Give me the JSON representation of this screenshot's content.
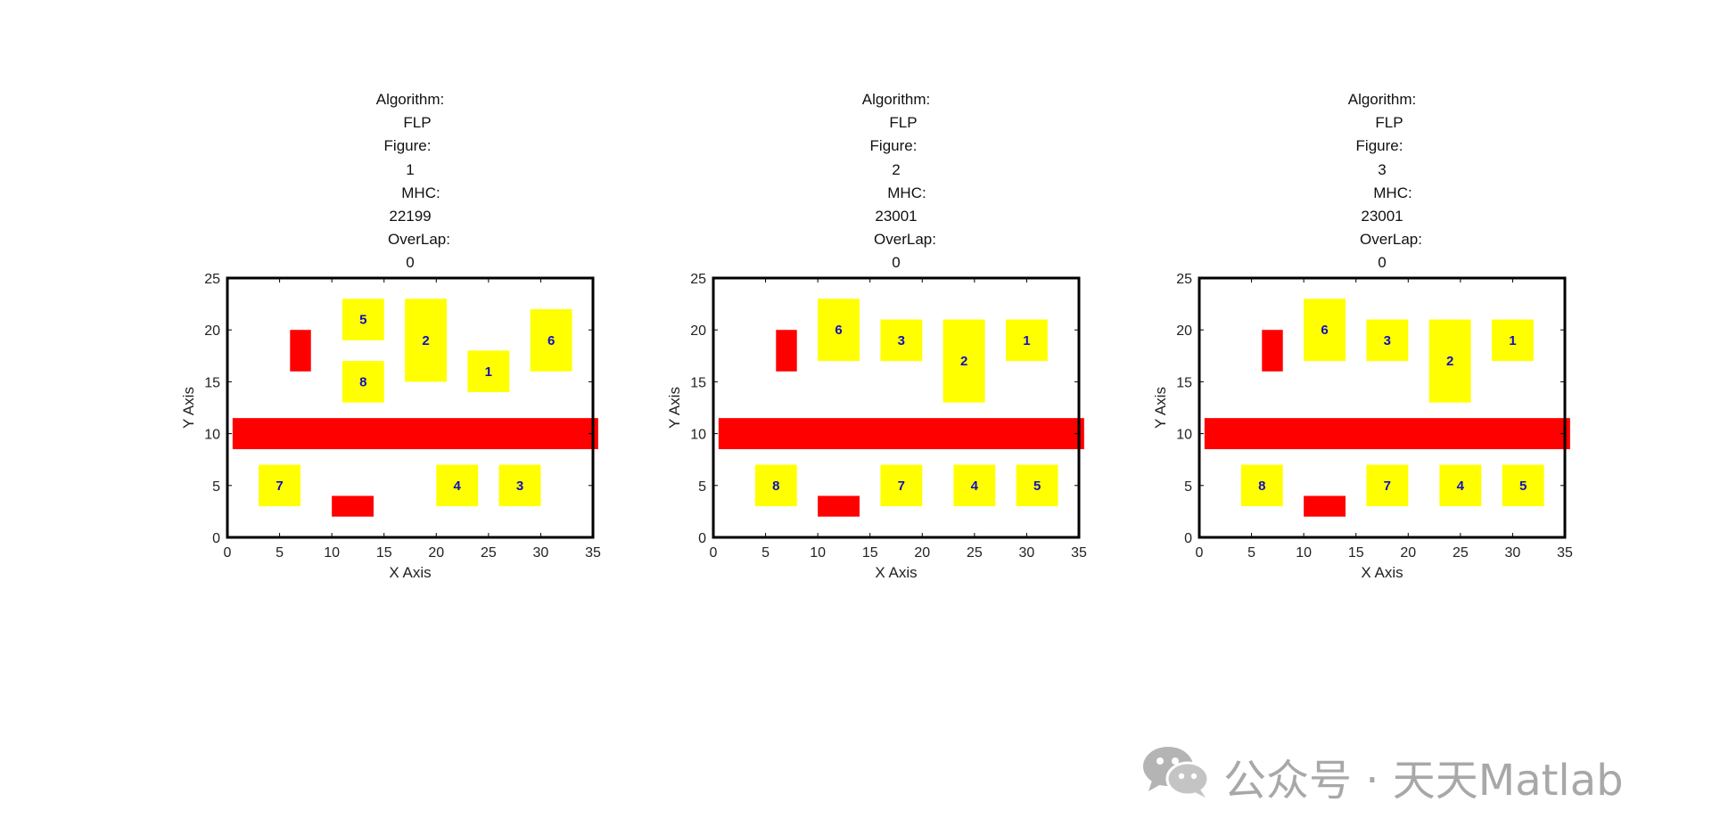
{
  "colors": {
    "obstacle": "#ff0000",
    "facility": "#ffff00",
    "facility_label": "#1010c0",
    "axes": "#000000",
    "watermark": "#a8a8a8"
  },
  "watermark": {
    "text": "公众号 · 天天Matlab",
    "icon": "wechat-icon"
  },
  "chart_data": [
    {
      "type": "layout",
      "title_lines": [
        "Algorithm:",
        "FLP",
        "Figure:",
        "1",
        "MHC:",
        "22199",
        "OverLap:",
        "0"
      ],
      "xlabel": "X Axis",
      "ylabel": "Y Axis",
      "xlim": [
        0,
        35
      ],
      "ylim": [
        0,
        25
      ],
      "xticks": [
        0,
        5,
        10,
        15,
        20,
        25,
        30,
        35
      ],
      "yticks": [
        0,
        5,
        10,
        15,
        20,
        25
      ],
      "obstacles": [
        {
          "x": 6,
          "y": 16,
          "w": 2,
          "h": 4
        },
        {
          "x": 0.5,
          "y": 8.5,
          "w": 35,
          "h": 3
        },
        {
          "x": 10,
          "y": 2,
          "w": 4,
          "h": 2
        }
      ],
      "facilities": [
        {
          "label": "5",
          "x": 11,
          "y": 19,
          "w": 4,
          "h": 4
        },
        {
          "label": "8",
          "x": 11,
          "y": 13,
          "w": 4,
          "h": 4
        },
        {
          "label": "2",
          "x": 17,
          "y": 15,
          "w": 4,
          "h": 8
        },
        {
          "label": "1",
          "x": 23,
          "y": 14,
          "w": 4,
          "h": 4
        },
        {
          "label": "6",
          "x": 29,
          "y": 16,
          "w": 4,
          "h": 6
        },
        {
          "label": "7",
          "x": 3,
          "y": 3,
          "w": 4,
          "h": 4
        },
        {
          "label": "4",
          "x": 20,
          "y": 3,
          "w": 4,
          "h": 4
        },
        {
          "label": "3",
          "x": 26,
          "y": 3,
          "w": 4,
          "h": 4
        }
      ]
    },
    {
      "type": "layout",
      "title_lines": [
        "Algorithm:",
        "FLP",
        "Figure:",
        "2",
        "MHC:",
        "23001",
        "OverLap:",
        "0"
      ],
      "xlabel": "X Axis",
      "ylabel": "Y Axis",
      "xlim": [
        0,
        35
      ],
      "ylim": [
        0,
        25
      ],
      "xticks": [
        0,
        5,
        10,
        15,
        20,
        25,
        30,
        35
      ],
      "yticks": [
        0,
        5,
        10,
        15,
        20,
        25
      ],
      "obstacles": [
        {
          "x": 6,
          "y": 16,
          "w": 2,
          "h": 4
        },
        {
          "x": 0.5,
          "y": 8.5,
          "w": 35,
          "h": 3
        },
        {
          "x": 10,
          "y": 2,
          "w": 4,
          "h": 2
        }
      ],
      "facilities": [
        {
          "label": "6",
          "x": 10,
          "y": 17,
          "w": 4,
          "h": 6
        },
        {
          "label": "3",
          "x": 16,
          "y": 17,
          "w": 4,
          "h": 4
        },
        {
          "label": "2",
          "x": 22,
          "y": 13,
          "w": 4,
          "h": 8
        },
        {
          "label": "1",
          "x": 28,
          "y": 17,
          "w": 4,
          "h": 4
        },
        {
          "label": "8",
          "x": 4,
          "y": 3,
          "w": 4,
          "h": 4
        },
        {
          "label": "7",
          "x": 16,
          "y": 3,
          "w": 4,
          "h": 4
        },
        {
          "label": "4",
          "x": 23,
          "y": 3,
          "w": 4,
          "h": 4
        },
        {
          "label": "5",
          "x": 29,
          "y": 3,
          "w": 4,
          "h": 4
        }
      ]
    },
    {
      "type": "layout",
      "title_lines": [
        "Algorithm:",
        "FLP",
        "Figure:",
        "3",
        "MHC:",
        "23001",
        "OverLap:",
        "0"
      ],
      "xlabel": "X Axis",
      "ylabel": "Y Axis",
      "xlim": [
        0,
        35
      ],
      "ylim": [
        0,
        25
      ],
      "xticks": [
        0,
        5,
        10,
        15,
        20,
        25,
        30,
        35
      ],
      "yticks": [
        0,
        5,
        10,
        15,
        20,
        25
      ],
      "obstacles": [
        {
          "x": 6,
          "y": 16,
          "w": 2,
          "h": 4
        },
        {
          "x": 0.5,
          "y": 8.5,
          "w": 35,
          "h": 3
        },
        {
          "x": 10,
          "y": 2,
          "w": 4,
          "h": 2
        }
      ],
      "facilities": [
        {
          "label": "6",
          "x": 10,
          "y": 17,
          "w": 4,
          "h": 6
        },
        {
          "label": "3",
          "x": 16,
          "y": 17,
          "w": 4,
          "h": 4
        },
        {
          "label": "2",
          "x": 22,
          "y": 13,
          "w": 4,
          "h": 8
        },
        {
          "label": "1",
          "x": 28,
          "y": 17,
          "w": 4,
          "h": 4
        },
        {
          "label": "8",
          "x": 4,
          "y": 3,
          "w": 4,
          "h": 4
        },
        {
          "label": "7",
          "x": 16,
          "y": 3,
          "w": 4,
          "h": 4
        },
        {
          "label": "4",
          "x": 23,
          "y": 3,
          "w": 4,
          "h": 4
        },
        {
          "label": "5",
          "x": 29,
          "y": 3,
          "w": 4,
          "h": 4
        }
      ]
    }
  ]
}
